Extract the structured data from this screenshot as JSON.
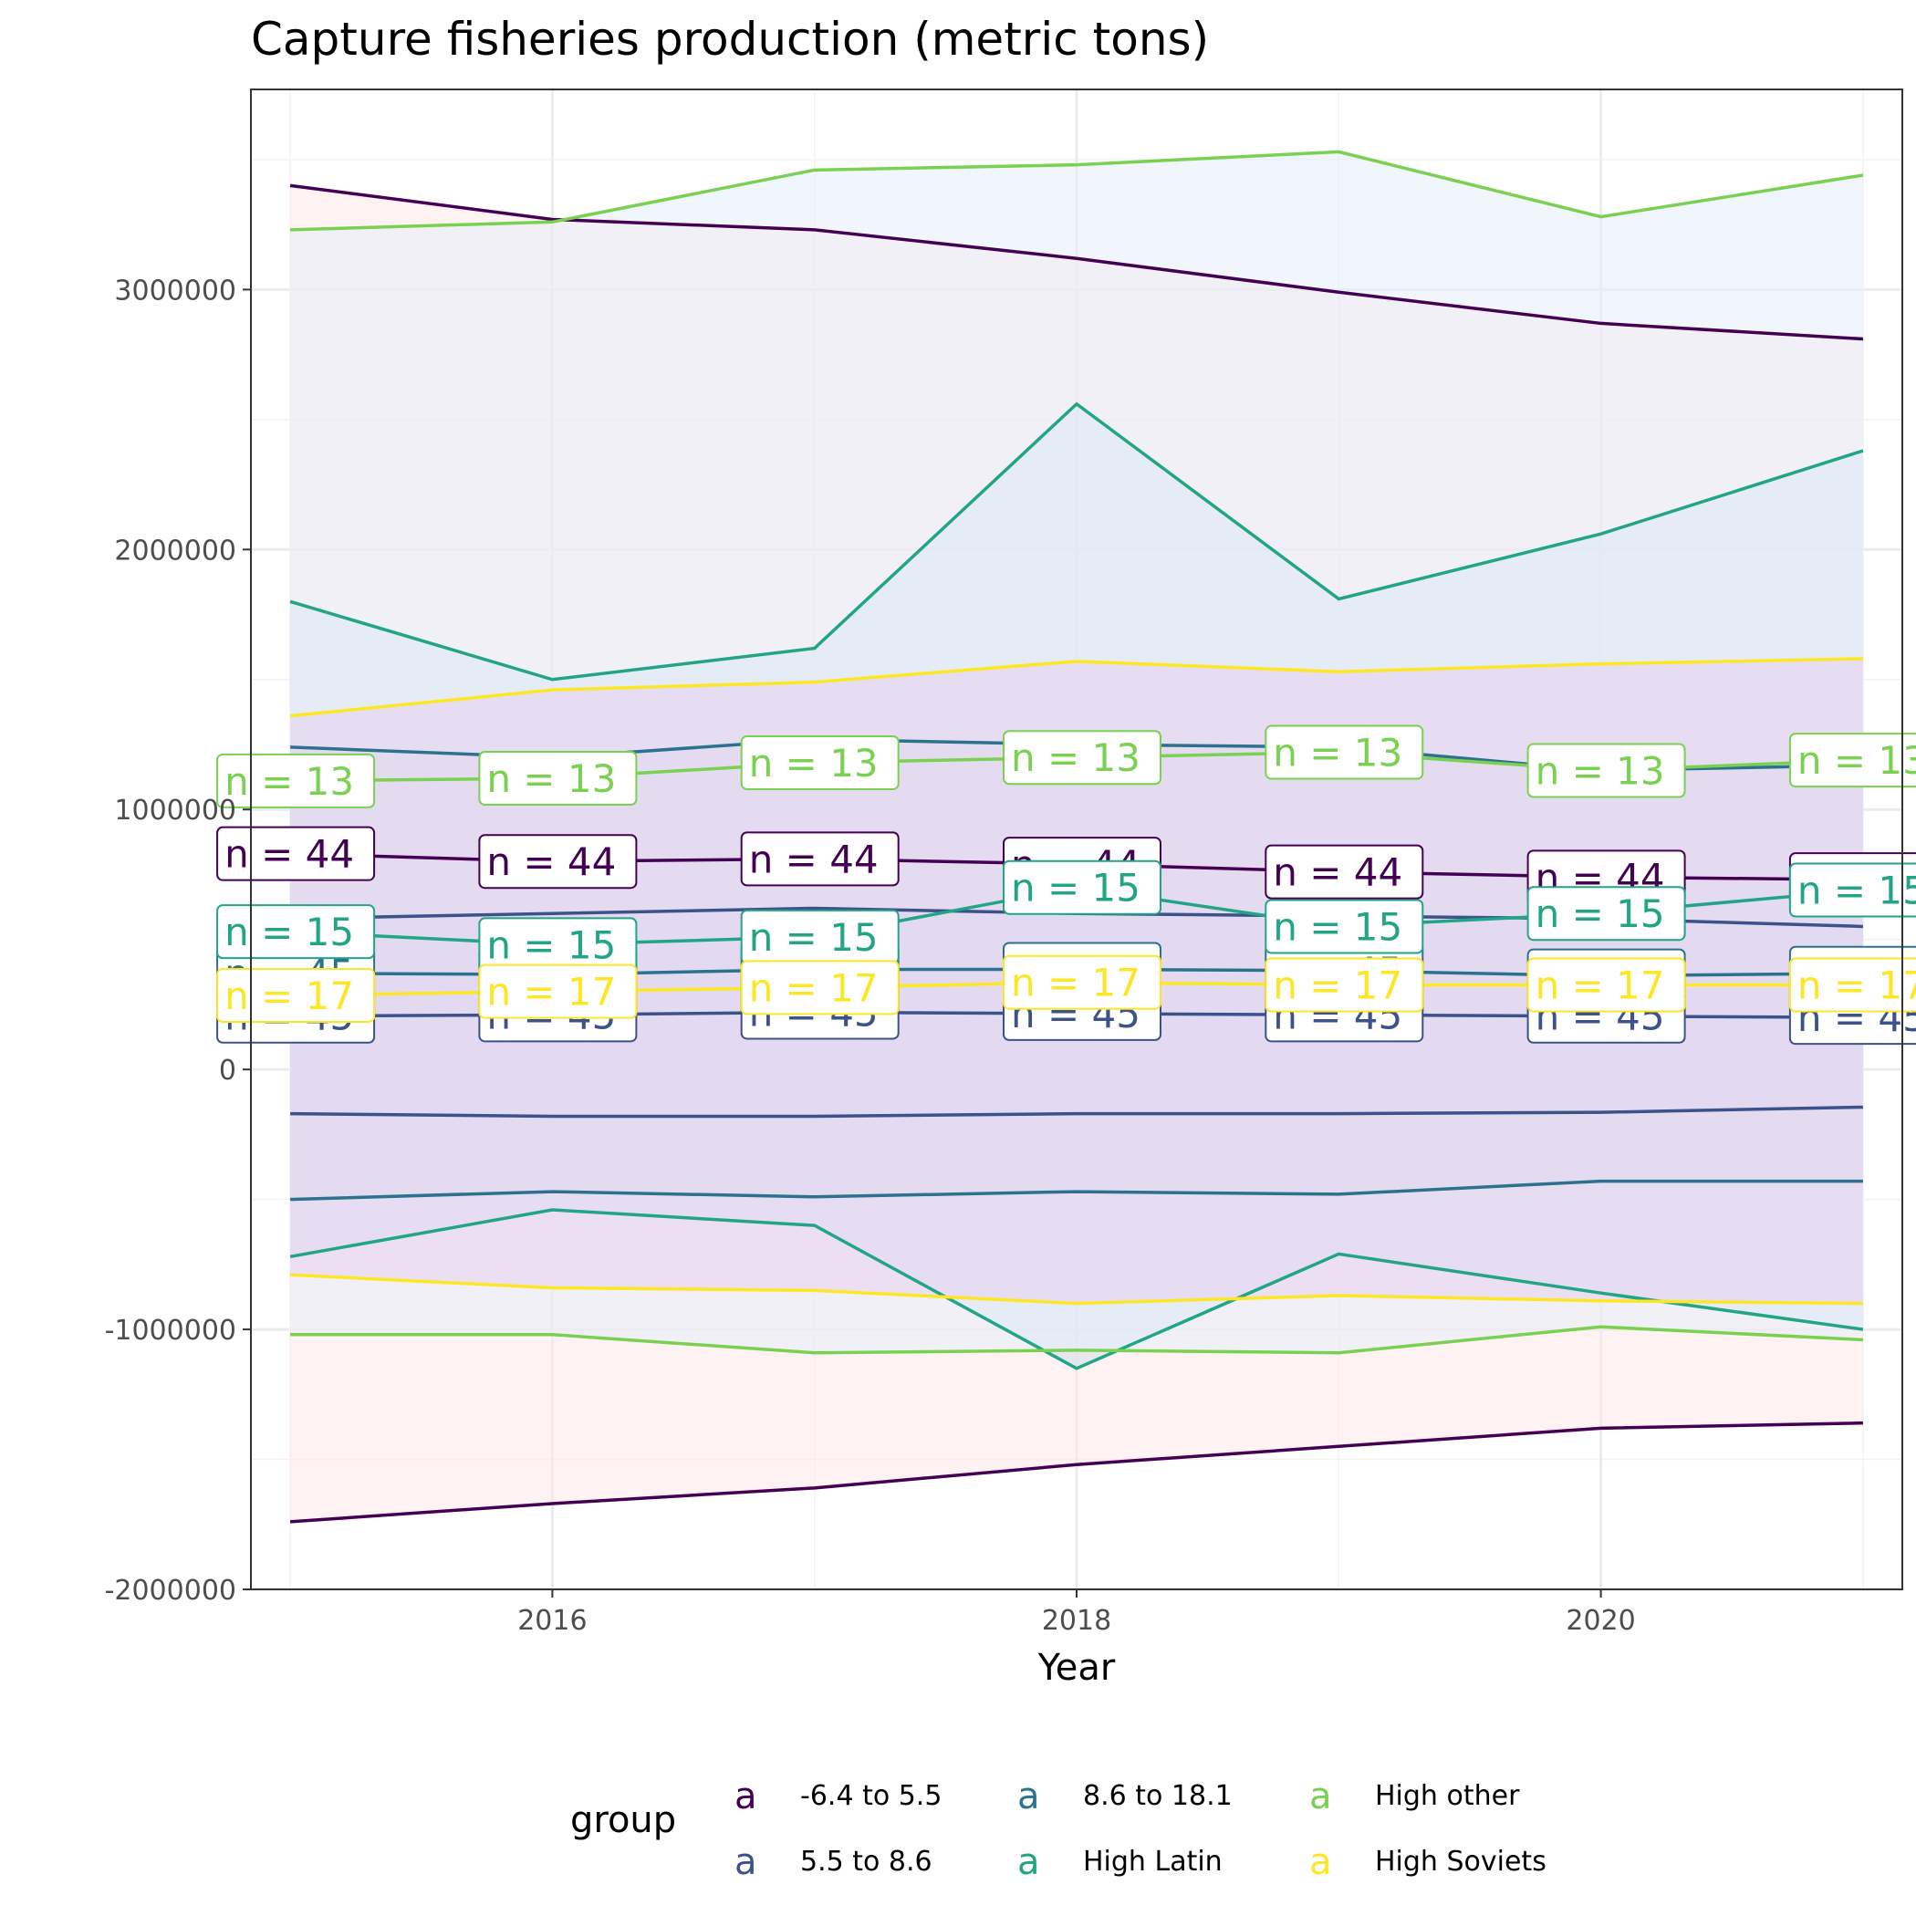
{
  "chart_data": {
    "type": "area",
    "title": "Capture fisheries production (metric tons)",
    "xlabel": "Year",
    "ylabel": "",
    "xlim": [
      2014.85,
      2021.15
    ],
    "ylim": [
      -2000000,
      3770000
    ],
    "x_ticks": [
      2016,
      2018,
      2020
    ],
    "y_ticks": [
      -2000000,
      -1000000,
      0,
      1000000,
      2000000,
      3000000
    ],
    "x_tick_labels": [
      "2016",
      "2018",
      "2020"
    ],
    "y_tick_labels": [
      "-2000000",
      "-1000000",
      "0",
      "1000000",
      "2000000",
      "3000000"
    ],
    "grid": true,
    "legend": {
      "title": "group",
      "placement": "bottom",
      "key_glyph": "a"
    },
    "x": [
      2015,
      2016,
      2017,
      2018,
      2019,
      2020,
      2021
    ],
    "series": [
      {
        "name": "-6.4 to 5.5",
        "color": "#440154",
        "fill": "#fde8e8",
        "upper": [
          3400000,
          3270000,
          3230000,
          3120000,
          2990000,
          2870000,
          2810000
        ],
        "lower": [
          -1740000,
          -1670000,
          -1610000,
          -1520000,
          -1450000,
          -1380000,
          -1360000
        ],
        "mean": [
          830000,
          800000,
          810000,
          790000,
          760000,
          740000,
          730000
        ],
        "n_label": "n = 44"
      },
      {
        "name": "5.5 to 8.6",
        "color": "#3b528b",
        "fill": "#b8cbe0",
        "upper": [
          580000,
          600000,
          620000,
          600000,
          590000,
          580000,
          550000
        ],
        "lower": [
          -170000,
          -180000,
          -180000,
          -170000,
          -170000,
          -165000,
          -145000
        ],
        "mean": [
          205000,
          210000,
          220000,
          215000,
          210000,
          205000,
          200000
        ],
        "n_label": "n = 45"
      },
      {
        "name": "8.6 to 18.1",
        "color": "#2c728e",
        "fill": "#c8c0e8",
        "upper": [
          1240000,
          1200000,
          1270000,
          1250000,
          1240000,
          1150000,
          1170000
        ],
        "lower": [
          -500000,
          -470000,
          -490000,
          -470000,
          -480000,
          -430000,
          -430000
        ],
        "mean": [
          370000,
          365000,
          385000,
          385000,
          380000,
          360000,
          370000
        ],
        "n_label": "n = 45"
      },
      {
        "name": "High Latin",
        "color": "#21a585",
        "fill": "#cfe0ec",
        "upper": [
          1800000,
          1500000,
          1620000,
          2560000,
          1810000,
          2060000,
          2380000
        ],
        "lower": [
          -720000,
          -540000,
          -600000,
          -1150000,
          -710000,
          -860000,
          -1000000
        ],
        "mean": [
          530000,
          480000,
          510000,
          700000,
          550000,
          600000,
          690000
        ],
        "n_label": "n = 15"
      },
      {
        "name": "High other",
        "color": "#7ad151",
        "fill": "#e6effb",
        "upper": [
          3230000,
          3260000,
          3460000,
          3480000,
          3530000,
          3280000,
          3440000
        ],
        "lower": [
          -1020000,
          -1020000,
          -1090000,
          -1080000,
          -1090000,
          -990000,
          -1040000
        ],
        "mean": [
          1110000,
          1120000,
          1180000,
          1200000,
          1220000,
          1150000,
          1190000
        ],
        "n_label": "n = 13"
      },
      {
        "name": "High Soviets",
        "color": "#fde725",
        "fill": "#e9d2ee",
        "upper": [
          1360000,
          1460000,
          1490000,
          1570000,
          1530000,
          1560000,
          1580000
        ],
        "lower": [
          -790000,
          -840000,
          -850000,
          -900000,
          -870000,
          -890000,
          -900000
        ],
        "mean": [
          285000,
          300000,
          315000,
          335000,
          325000,
          325000,
          325000
        ],
        "n_label": "n = 17"
      }
    ]
  }
}
